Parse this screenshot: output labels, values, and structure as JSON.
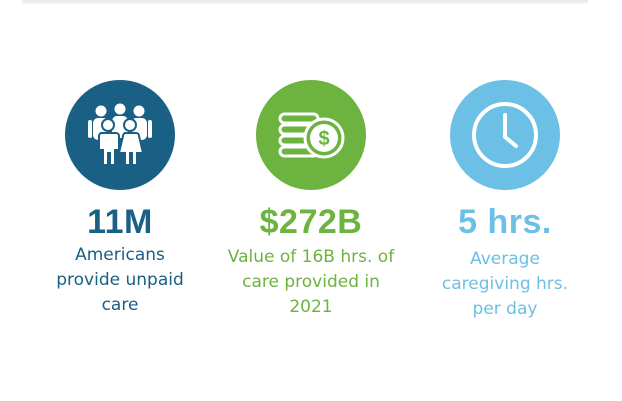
{
  "colors": {
    "navy": "#1a5f84",
    "green": "#6db33f",
    "sky": "#6cc0e5"
  },
  "stats": [
    {
      "icon": "people-group-icon",
      "value": "11M",
      "description": "Americans provide unpaid care",
      "color": "#1a5f84"
    },
    {
      "icon": "money-coins-icon",
      "value": "$272B",
      "description": "Value of 16B hrs. of care provided in 2021",
      "color": "#6db33f"
    },
    {
      "icon": "clock-icon",
      "value": "5 hrs.",
      "description": "Average caregiving hrs. per day",
      "color": "#6cc0e5"
    }
  ]
}
